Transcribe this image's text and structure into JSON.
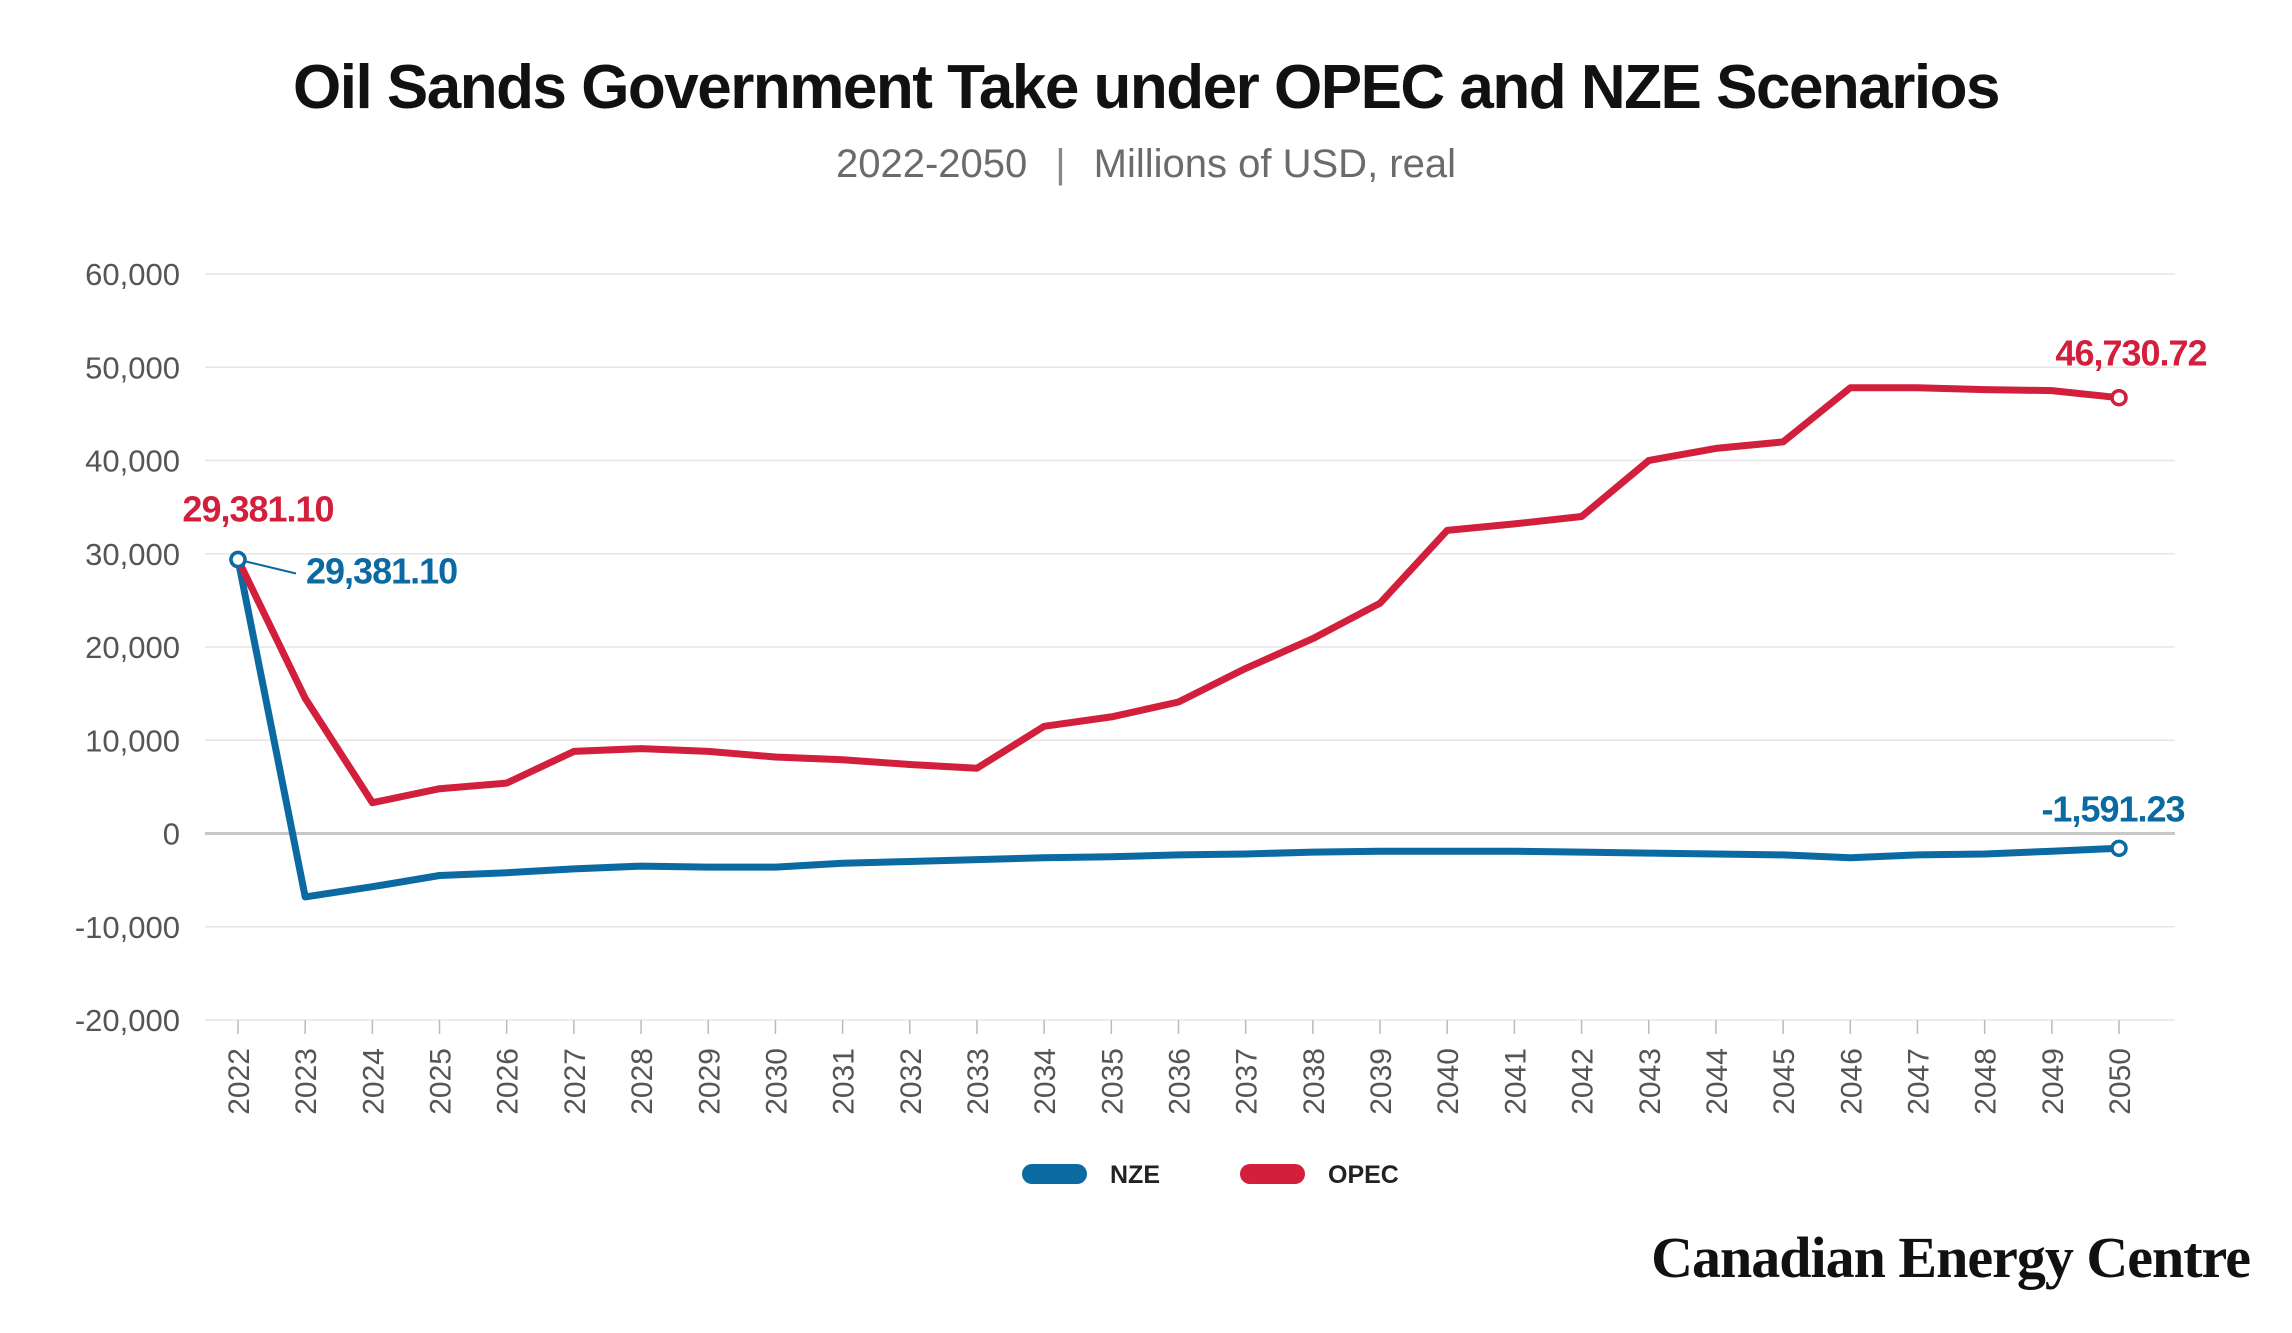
{
  "header": {
    "title": "Oil Sands Government Take under OPEC and NZE Scenarios",
    "subtitle_period": "2022-2050",
    "subtitle_separator": "|",
    "subtitle_units": "Millions of USD, real"
  },
  "brand": {
    "name": "Canadian Energy Centre"
  },
  "chart_data": {
    "type": "line",
    "title": "Oil Sands Government Take under OPEC and NZE Scenarios",
    "subtitle": "2022-2050 | Millions of USD, real",
    "xlabel": "",
    "ylabel": "",
    "x": [
      2022,
      2023,
      2024,
      2025,
      2026,
      2027,
      2028,
      2029,
      2030,
      2031,
      2032,
      2033,
      2034,
      2035,
      2036,
      2037,
      2038,
      2039,
      2040,
      2041,
      2042,
      2043,
      2044,
      2045,
      2046,
      2047,
      2048,
      2049,
      2050
    ],
    "ylim": [
      -20000,
      60000
    ],
    "yticks": [
      -20000,
      -10000,
      0,
      10000,
      20000,
      30000,
      40000,
      50000,
      60000
    ],
    "ytick_labels": [
      "-20,000",
      "-10,000",
      "0",
      "10,000",
      "20,000",
      "30,000",
      "40,000",
      "50,000",
      "60,000"
    ],
    "grid": true,
    "legend": "bottom-center",
    "series": [
      {
        "name": "NZE",
        "color": "#0b6aa2",
        "values": [
          29381.1,
          -6800,
          -5700,
          -4500,
          -4200,
          -3800,
          -3500,
          -3600,
          -3600,
          -3200,
          -3000,
          -2800,
          -2600,
          -2500,
          -2300,
          -2200,
          -2000,
          -1900,
          -1900,
          -1900,
          -2000,
          -2100,
          -2200,
          -2300,
          -2600,
          -2300,
          -2200,
          -1900,
          -1591.23
        ]
      },
      {
        "name": "OPEC",
        "color": "#d21f3c",
        "values": [
          29381.1,
          14500,
          3300,
          4800,
          5400,
          8800,
          9100,
          8800,
          8200,
          7900,
          7400,
          7000,
          11500,
          12500,
          14100,
          17700,
          20900,
          24700,
          32500,
          33200,
          34000,
          40000,
          41300,
          42000,
          47800,
          47800,
          47600,
          47500,
          46730.72
        ]
      }
    ],
    "annotations": [
      {
        "text": "29,381.10",
        "series": "OPEC",
        "x": 2022,
        "y": 29381.1,
        "color": "#d21f3c"
      },
      {
        "text": "29,381.10",
        "series": "NZE",
        "x": 2022,
        "y": 29381.1,
        "color": "#0b6aa2"
      },
      {
        "text": "46,730.72",
        "series": "OPEC",
        "x": 2050,
        "y": 46730.72,
        "color": "#d21f3c"
      },
      {
        "text": "-1,591.23",
        "series": "NZE",
        "x": 2050,
        "y": -1591.23,
        "color": "#0b6aa2"
      }
    ]
  }
}
